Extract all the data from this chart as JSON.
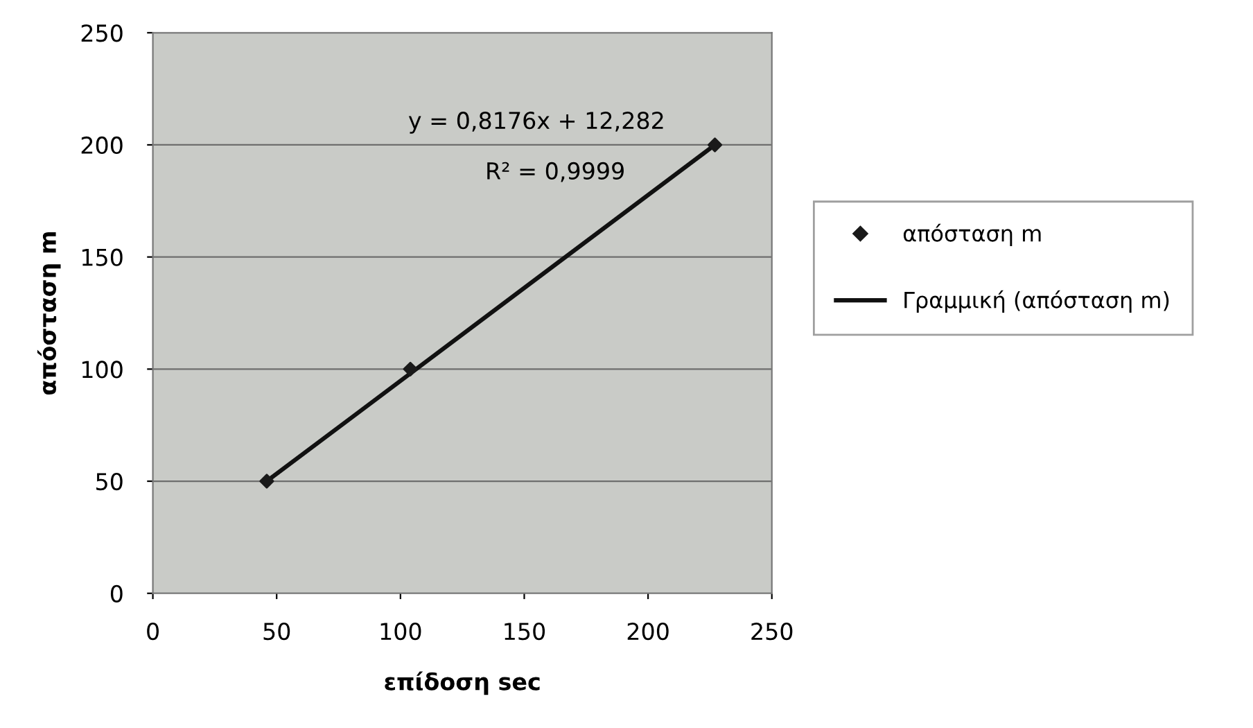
{
  "chart_data": {
    "type": "scatter",
    "xlabel": "επίδοση sec",
    "ylabel": "απόσταση m",
    "xlim": [
      0,
      250
    ],
    "xticks": [
      0,
      50,
      100,
      150,
      200,
      250
    ],
    "ylim": [
      0,
      250
    ],
    "yticks": [
      0,
      50,
      100,
      150,
      200,
      250
    ],
    "grid": "y",
    "legend": "right",
    "series": [
      {
        "name": "απόσταση m",
        "marker": "diamond",
        "color": "#1a1a1a",
        "x": [
          46,
          104,
          227
        ],
        "values": [
          50,
          100,
          200
        ]
      },
      {
        "name": "Γραμμική (απόσταση m)",
        "type": "line",
        "marker": "none",
        "color": "#111111",
        "x": [
          46,
          227
        ],
        "values": [
          50,
          200
        ]
      }
    ],
    "annotations": [
      "y = 0,8176x + 12,282",
      "R² = 0,9999"
    ]
  }
}
